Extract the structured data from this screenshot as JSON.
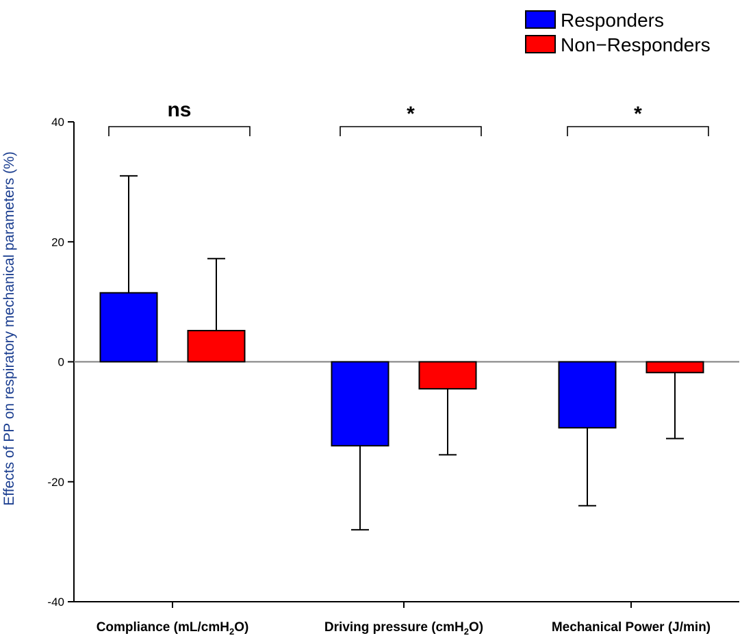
{
  "chart_data": {
    "type": "bar",
    "title": "",
    "xlabel": "",
    "ylabel": "Effects of PP on respiratory mechanical parameters (%)",
    "ylim": [
      -40,
      40
    ],
    "yticks": [
      40,
      20,
      0,
      -20,
      -40
    ],
    "ytick_labels": [
      "40",
      "20",
      "0",
      "-20",
      "-40"
    ],
    "categories": [
      {
        "main": "Compliance (mL/cmH",
        "sub": "2",
        "tail": "O)"
      },
      {
        "main": "Driving pressure (cmH",
        "sub": "2",
        "tail": "O)"
      },
      {
        "main": "Mechanical Power (J/min)",
        "sub": "",
        "tail": ""
      }
    ],
    "series": [
      {
        "name": "Responders",
        "color": "#0000ff",
        "values": [
          11.5,
          -14,
          -11
        ],
        "errors": [
          19.5,
          14,
          13
        ]
      },
      {
        "name": "Non−Responders",
        "color": "#ff0000",
        "values": [
          5.2,
          -4.5,
          -1.8
        ],
        "errors": [
          12,
          11,
          11
        ]
      }
    ],
    "significance": [
      "ns",
      "*",
      "*"
    ],
    "legend": "top-right"
  }
}
